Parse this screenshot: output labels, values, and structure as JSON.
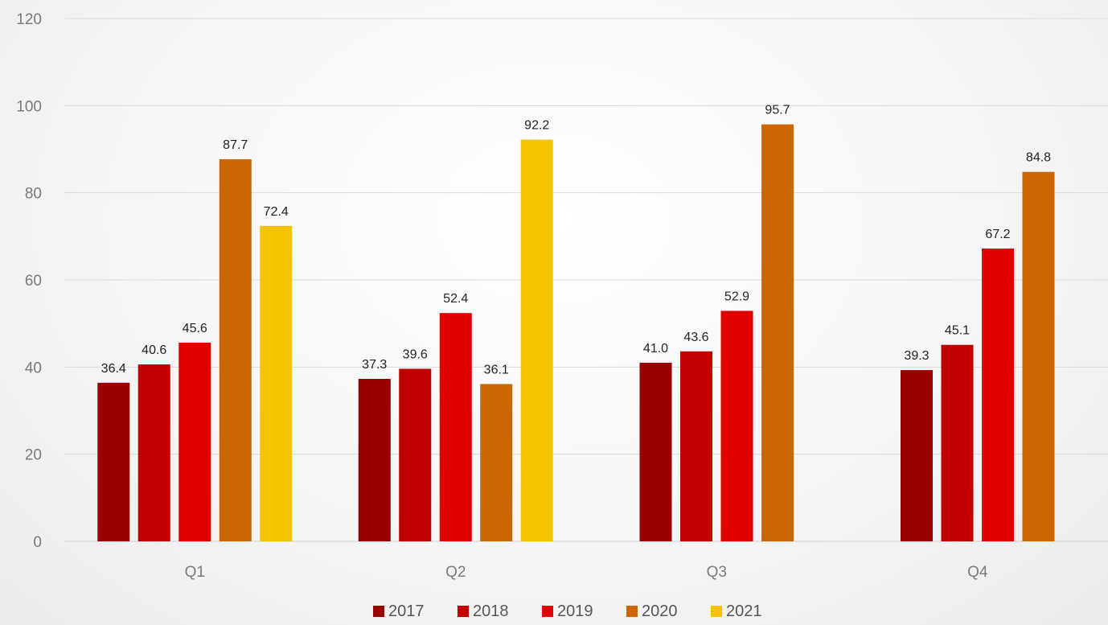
{
  "chart_data": {
    "type": "bar",
    "title": "",
    "xlabel": "",
    "ylabel": "",
    "ylim": [
      0,
      120
    ],
    "y_ticks": [
      0,
      20,
      40,
      60,
      80,
      100,
      120
    ],
    "grid": true,
    "legend_position": "bottom",
    "categories": [
      "Q1",
      "Q2",
      "Q3",
      "Q4"
    ],
    "series": [
      {
        "name": "2017",
        "color": "#9b0000",
        "values": [
          36.4,
          37.3,
          41.0,
          39.3
        ]
      },
      {
        "name": "2018",
        "color": "#c00000",
        "values": [
          40.6,
          39.6,
          43.6,
          45.1
        ]
      },
      {
        "name": "2019",
        "color": "#e00000",
        "values": [
          45.6,
          52.4,
          52.9,
          67.2
        ]
      },
      {
        "name": "2020",
        "color": "#cc6600",
        "values": [
          87.7,
          36.1,
          95.7,
          84.8
        ]
      },
      {
        "name": "2021",
        "color": "#f5c400",
        "values": [
          72.4,
          92.2,
          null,
          null
        ]
      }
    ]
  }
}
